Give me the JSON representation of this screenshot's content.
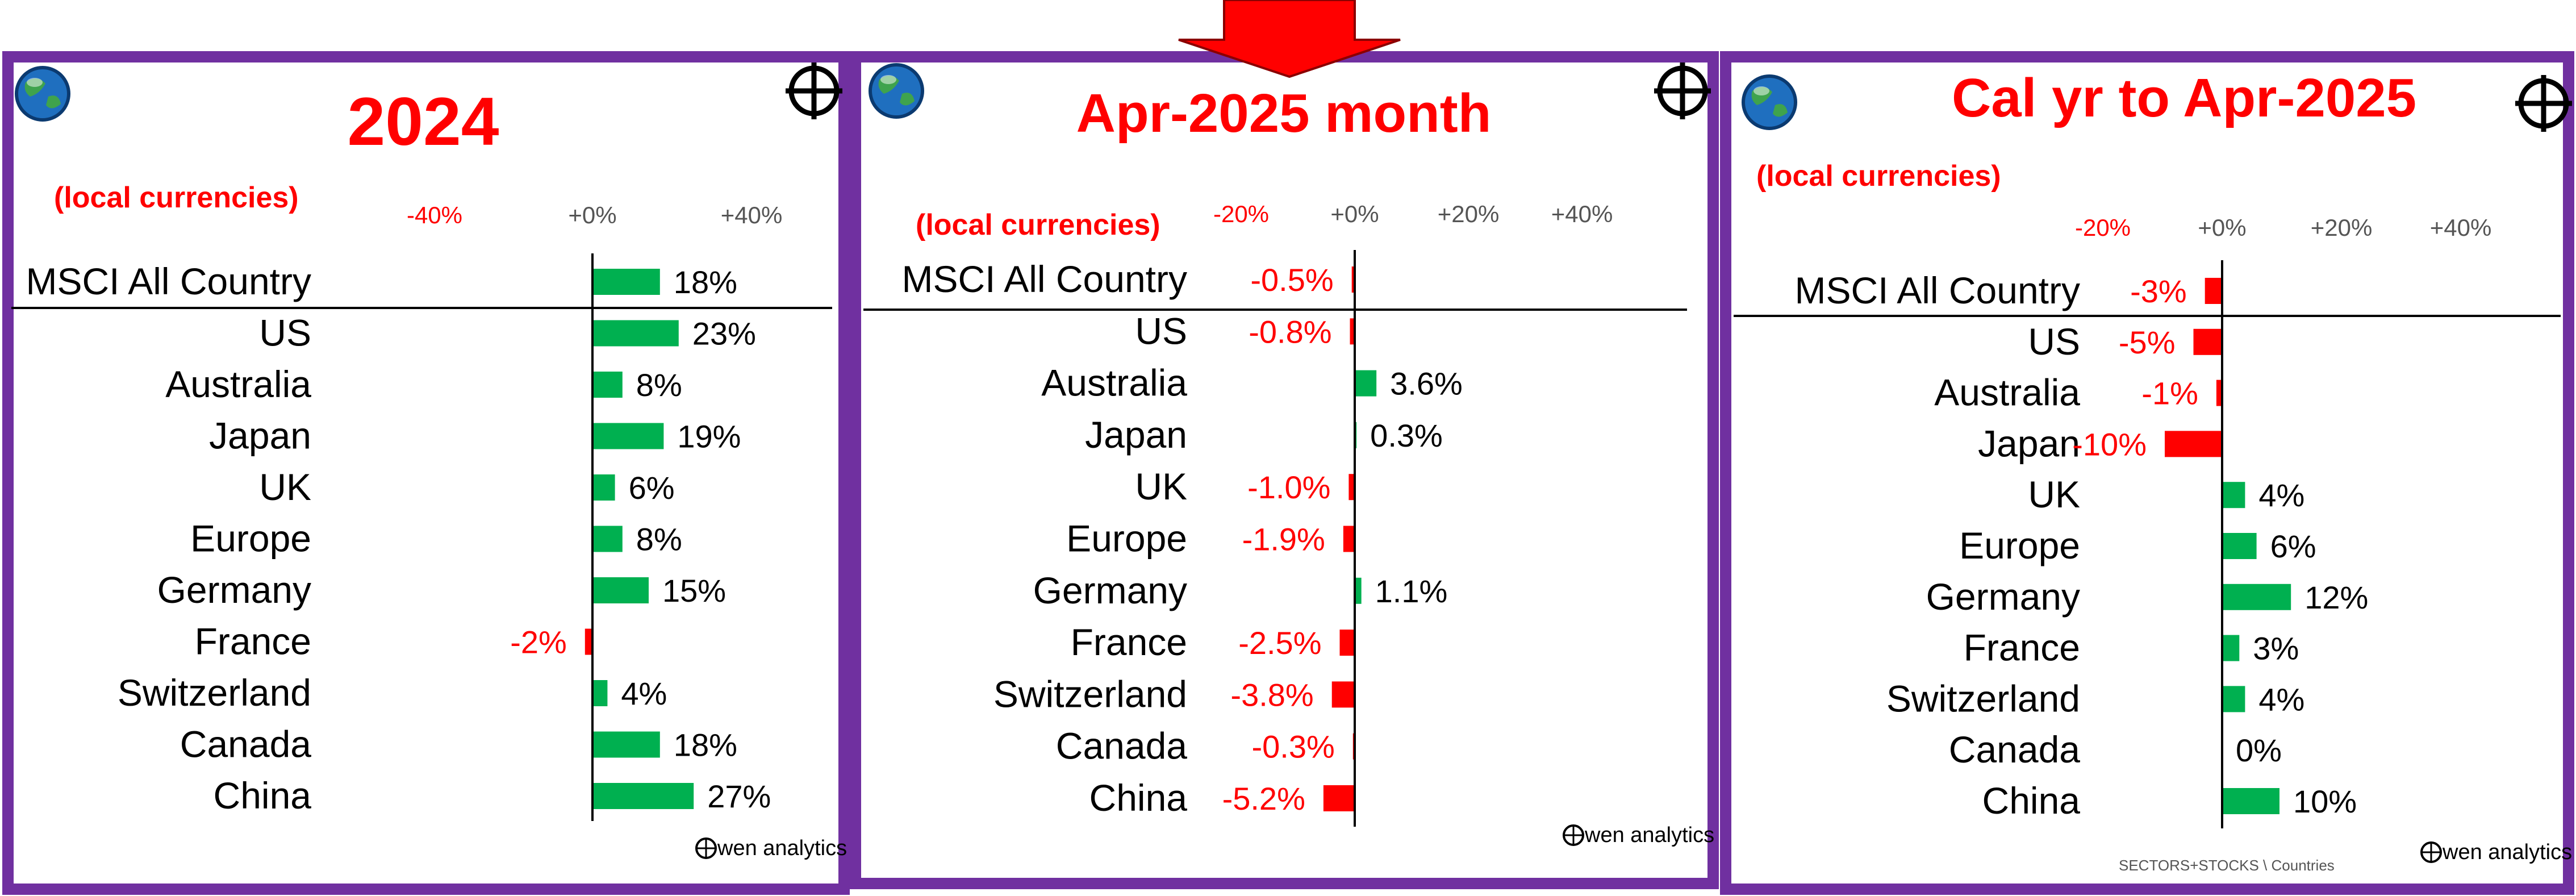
{
  "colors": {
    "frame": "#7030a0",
    "positive": "#00b050",
    "negative": "#ff0000",
    "title": "#ff0000",
    "text": "#000000",
    "axis_label": "#555555"
  },
  "brand": {
    "logo_text": "wen analytics"
  },
  "footer_note": "SECTORS+STOCKS \\ Countries",
  "chart_data": [
    {
      "type": "bar",
      "title": "2024",
      "subtitle": "(local currencies)",
      "tick_labels": [
        "-40%",
        "+0%",
        "+40%"
      ],
      "categories": [
        "MSCI All Country",
        "US",
        "Australia",
        "Japan",
        "UK",
        "Europe",
        "Germany",
        "France",
        "Switzerland",
        "Canada",
        "China"
      ],
      "values": [
        18,
        23,
        8,
        19,
        6,
        8,
        15,
        -2,
        4,
        18,
        27
      ],
      "value_labels": [
        "18%",
        "23%",
        "8%",
        "19%",
        "6%",
        "8%",
        "15%",
        "-2%",
        "4%",
        "18%",
        "27%"
      ],
      "units": "%",
      "grid": false
    },
    {
      "type": "bar",
      "title": "Apr-2025 month",
      "subtitle": "(local currencies)",
      "tick_labels": [
        "-20%",
        "+0%",
        "+20%",
        "+40%"
      ],
      "categories": [
        "MSCI All Country",
        "US",
        "Australia",
        "Japan",
        "UK",
        "Europe",
        "Germany",
        "France",
        "Switzerland",
        "Canada",
        "China"
      ],
      "values": [
        -0.5,
        -0.8,
        3.6,
        0.3,
        -1.0,
        -1.9,
        1.1,
        -2.5,
        -3.8,
        -0.3,
        -5.2
      ],
      "value_labels": [
        "-0.5%",
        "-0.8%",
        "3.6%",
        "0.3%",
        "-1.0%",
        "-1.9%",
        "1.1%",
        "-2.5%",
        "-3.8%",
        "-0.3%",
        "-5.2%"
      ],
      "units": "%",
      "grid": false
    },
    {
      "type": "bar",
      "title": "Cal yr to Apr-2025",
      "subtitle": "(local currencies)",
      "tick_labels": [
        "-20%",
        "+0%",
        "+20%",
        "+40%"
      ],
      "categories": [
        "MSCI All Country",
        "US",
        "Australia",
        "Japan",
        "UK",
        "Europe",
        "Germany",
        "France",
        "Switzerland",
        "Canada",
        "China"
      ],
      "values": [
        -3,
        -5,
        -1,
        -10,
        4,
        6,
        12,
        3,
        4,
        0,
        10
      ],
      "value_labels": [
        "-3%",
        "-5%",
        "-1%",
        "-10%",
        "4%",
        "6%",
        "12%",
        "3%",
        "4%",
        "0%",
        "10%"
      ],
      "units": "%",
      "grid": false
    }
  ]
}
